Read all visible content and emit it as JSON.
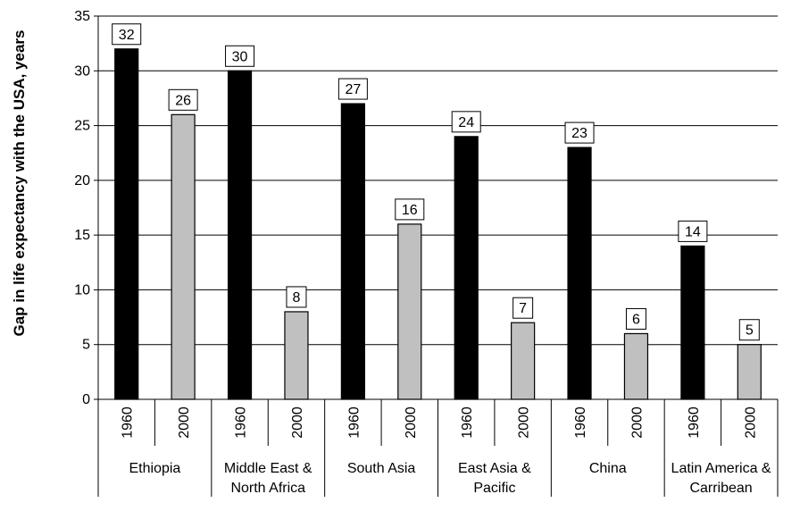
{
  "chart_data": {
    "type": "bar",
    "ylabel": "Gap in life expectancy with the USA, years",
    "ylim": [
      0,
      35
    ],
    "yticks": [
      0,
      5,
      10,
      15,
      20,
      25,
      30,
      35
    ],
    "grid": true,
    "groups": [
      "Ethiopia",
      "Middle East & North Africa",
      "South Asia",
      "East Asia & Pacific",
      "China",
      "Latin America & Carribean"
    ],
    "group_label_lines": [
      [
        "Ethiopia"
      ],
      [
        "Middle East &",
        "North Africa"
      ],
      [
        "South Asia"
      ],
      [
        "East Asia &",
        "Pacific"
      ],
      [
        "China"
      ],
      [
        "Latin America &",
        "Carribean"
      ]
    ],
    "sub_categories": [
      "1960",
      "2000"
    ],
    "series": [
      {
        "name": "1960",
        "color": "#000000",
        "values": [
          32,
          30,
          27,
          24,
          23,
          14
        ]
      },
      {
        "name": "2000",
        "color": "#c0c0c0",
        "values": [
          26,
          8,
          16,
          7,
          6,
          5
        ]
      }
    ]
  }
}
